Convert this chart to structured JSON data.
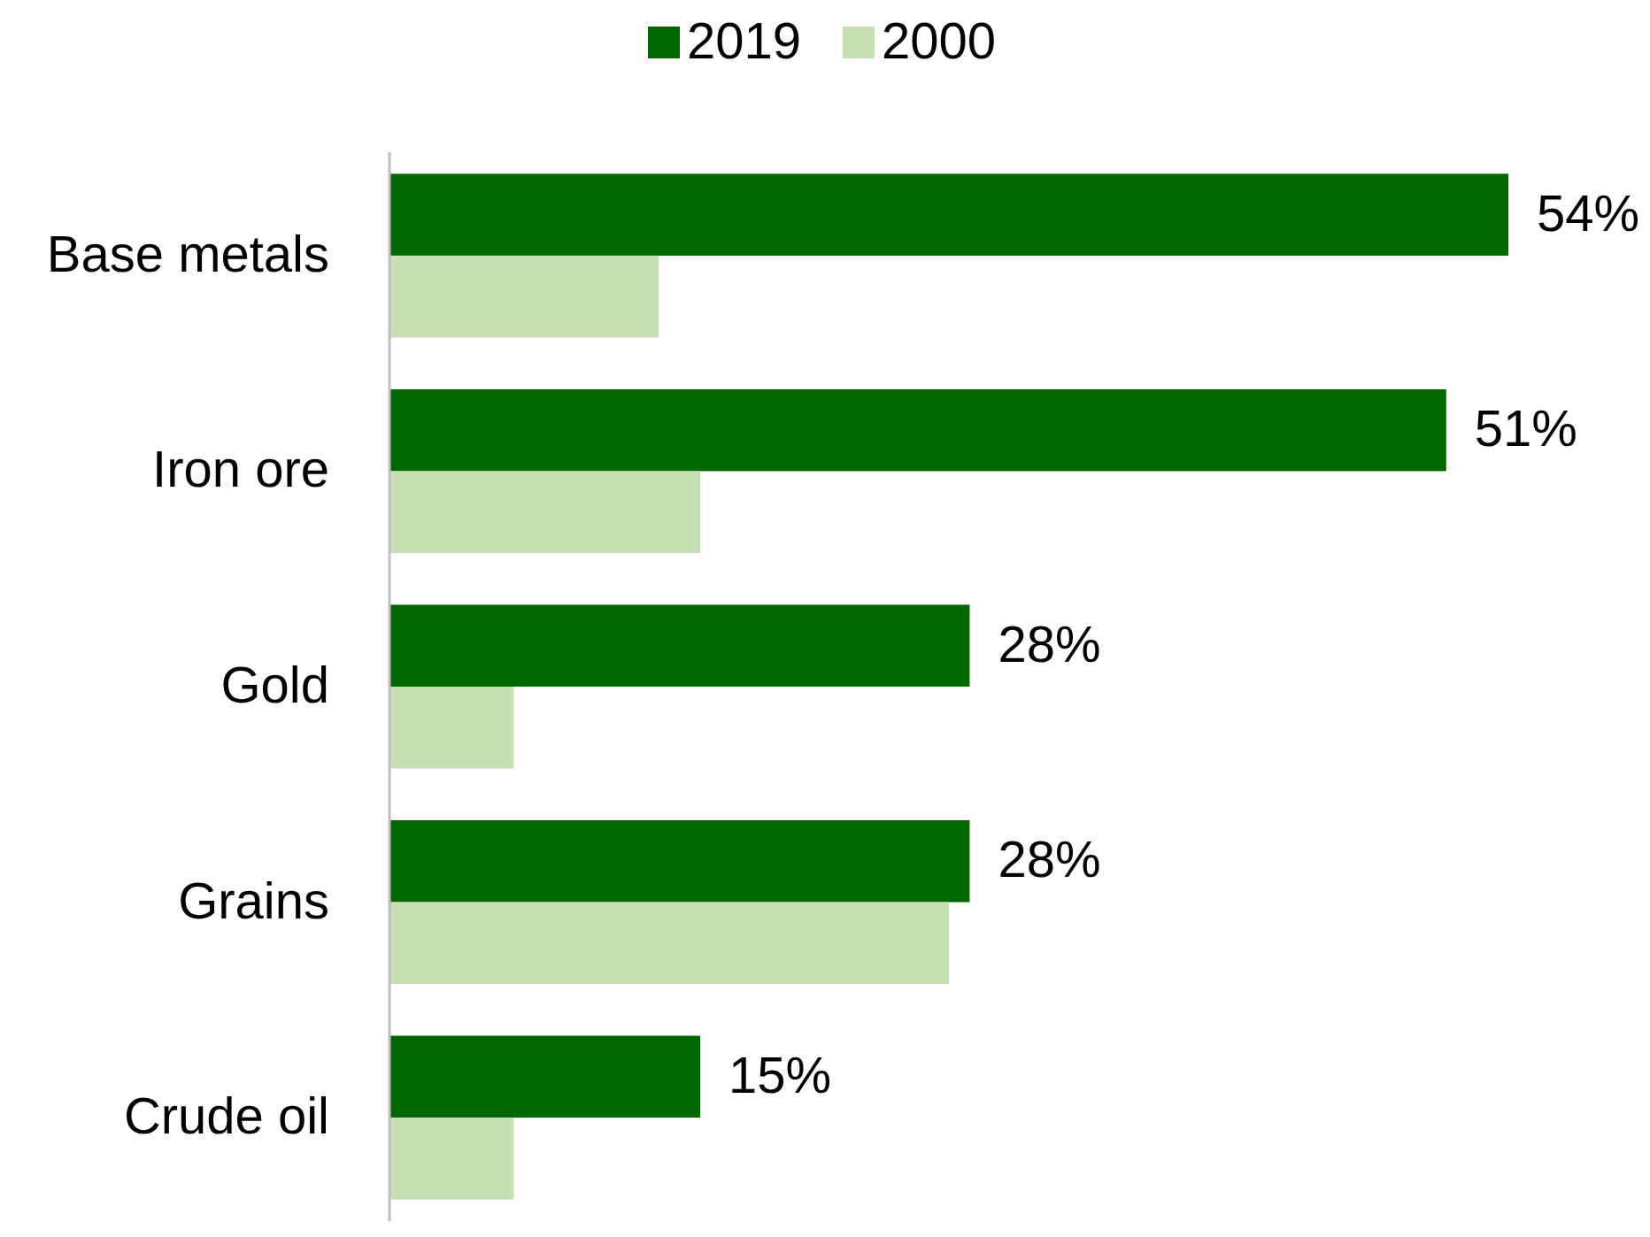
{
  "chart_data": {
    "type": "bar",
    "orientation": "horizontal",
    "categories": [
      "Base metals",
      "Iron ore",
      "Gold",
      "Grains",
      "Crude oil"
    ],
    "series": [
      {
        "name": "2019",
        "color": "#006600",
        "values": [
          54,
          51,
          28,
          28,
          15
        ],
        "value_labels": [
          "54%",
          "51%",
          "28%",
          "28%",
          "15%"
        ]
      },
      {
        "name": "2000",
        "color": "#c6e0b4",
        "values": [
          13,
          15,
          6,
          27,
          6
        ]
      }
    ],
    "legend": "top",
    "grid": false
  }
}
